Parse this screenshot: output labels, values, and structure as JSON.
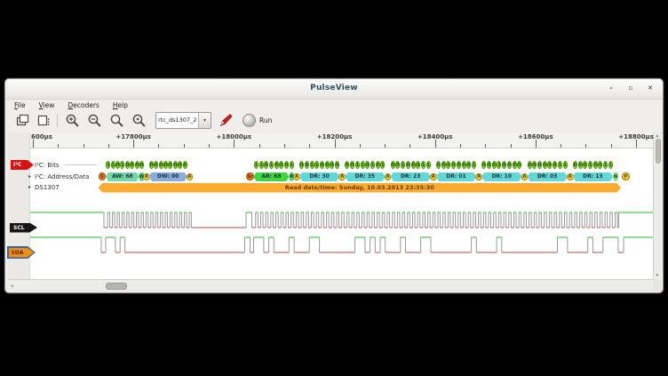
{
  "window": {
    "title": "PulseView",
    "controls": [
      {
        "name": "minimize",
        "glyph": "–"
      },
      {
        "name": "maximize",
        "glyph": "▫"
      },
      {
        "name": "close",
        "glyph": "✕"
      }
    ]
  },
  "menubar": {
    "items": [
      "File",
      "View",
      "Decoders",
      "Help"
    ]
  },
  "toolbar": {
    "session_file": "rtc_ds1307_2",
    "run_label": "Run"
  },
  "ruler": {
    "labels": [
      "600µs",
      "+17800µs",
      "+18000µs",
      "+18200µs",
      "+18400µs",
      "+18600µs",
      "+18800µs"
    ]
  },
  "panel": {
    "decoder_tag": "I²C",
    "rows": [
      {
        "label": "I²C: Bits",
        "expandable": false
      },
      {
        "label": "I²C: Address/Data",
        "expandable": true
      },
      {
        "label": "DS1307",
        "expandable": true
      }
    ],
    "signals": [
      {
        "label": "SCL",
        "selected": false
      },
      {
        "label": "SDA",
        "selected": true
      }
    ]
  },
  "i2c": {
    "start_label": "S",
    "repeat_start_label": "Sr",
    "stop_label": "P",
    "write_label": "W",
    "read_label": "R",
    "bytes": [
      {
        "kind": "address-write",
        "bits": "11010000",
        "label": "AW: 68",
        "ack": "A"
      },
      {
        "kind": "data-write",
        "bits": "00000000",
        "label": "DW: 00",
        "ack": "A"
      },
      {
        "kind": "address-read",
        "bits": "11010001",
        "label": "AR: 68",
        "ack": "A"
      },
      {
        "kind": "data-read",
        "bits": "00110000",
        "label": "DR: 30",
        "ack": "A"
      },
      {
        "kind": "data-read",
        "bits": "00110101",
        "label": "DR: 35",
        "ack": "A"
      },
      {
        "kind": "data-read",
        "bits": "00100011",
        "label": "DR: 23",
        "ack": "A"
      },
      {
        "kind": "data-read",
        "bits": "00000001",
        "label": "DR: 01",
        "ack": "A"
      },
      {
        "kind": "data-read",
        "bits": "00010000",
        "label": "DR: 10",
        "ack": "A"
      },
      {
        "kind": "data-read",
        "bits": "00000011",
        "label": "DR: 03",
        "ack": "A"
      },
      {
        "kind": "data-read",
        "bits": "00010011",
        "label": "DR: 13",
        "ack": "N"
      }
    ],
    "ds1307_annotation": "Read date/time: Sunday, 10.03.2013 23:35:30"
  },
  "colors": {
    "bit": "#86dd1e",
    "addr_write": "#72d8a8",
    "addr_read": "#42d542",
    "data_write": "#8cabdd",
    "data_read": "#66d7d7",
    "ack": "#e6d92e",
    "nack": "#7ddd7d",
    "start": "#f0761c",
    "stop": "#e8c926",
    "rw_marker": "#55cc77",
    "ds1307_bar": "#f9ab32",
    "signal_high": "#2ab32a",
    "signal_low": "#b04a4a",
    "edge": "#9a9a9a",
    "decoder_tag": "#d61313",
    "scl_tag": "#161616",
    "sda_tag": "#ea8f1e",
    "sda_tag_border": "#3465a4"
  }
}
